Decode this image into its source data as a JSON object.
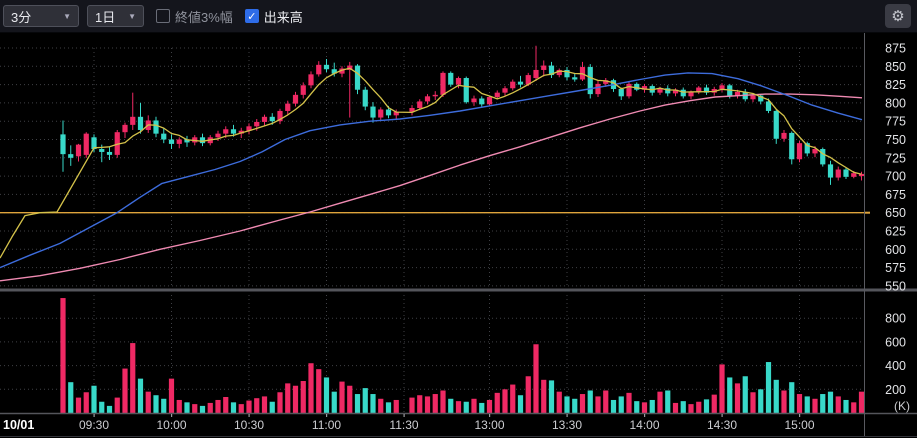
{
  "toolbar": {
    "interval_select": {
      "value": "3分"
    },
    "range_select": {
      "value": "1日"
    },
    "close_band_checkbox": {
      "label": "終値3%幅",
      "checked": false
    },
    "volume_checkbox": {
      "label": "出来高",
      "checked": true
    }
  },
  "icons": {
    "caret": "▼",
    "check": "✓",
    "gear": "⚙"
  },
  "colors": {
    "up": "#ef2964",
    "down": "#38d9c9",
    "ma_short": "#d4c24a",
    "ma_mid": "#3d6cdc",
    "ma_long": "#ef8ab2",
    "reference": "#dfa43c",
    "grid": "#3f4045",
    "axis_text": "#e2e3e6",
    "time_text": "#cdced2",
    "divider": "#54555b",
    "border": "#595a60"
  },
  "chart_data": {
    "type": "candlestick",
    "date_label": "10/01",
    "interval_minutes": 3,
    "sessions": {
      "morning_start": "09:18",
      "morning_count": 44,
      "afternoon_start": "12:30",
      "afternoon_count": 59
    },
    "time_ticks": [
      "09:30",
      "10:00",
      "10:30",
      "11:00",
      "11:30",
      "13:00",
      "13:30",
      "14:00",
      "14:30",
      "15:00"
    ],
    "price_axis": {
      "min": 550,
      "max": 875,
      "step": 25,
      "side": "right"
    },
    "volume_axis": {
      "ticks": [
        200,
        400,
        600,
        800
      ],
      "unit": "(K)"
    },
    "reference_line": {
      "price": 650
    },
    "candles": [
      [
        757,
        776,
        706,
        730,
        970
      ],
      [
        730,
        742,
        714,
        725,
        260
      ],
      [
        727,
        744,
        720,
        743,
        130
      ],
      [
        729,
        760,
        725,
        758,
        175
      ],
      [
        753,
        757,
        733,
        737,
        230
      ],
      [
        737,
        743,
        719,
        733,
        95
      ],
      [
        733,
        740,
        722,
        729,
        60
      ],
      [
        729,
        763,
        725,
        760,
        130
      ],
      [
        760,
        773,
        752,
        770,
        375
      ],
      [
        770,
        814,
        763,
        781,
        590
      ],
      [
        781,
        800,
        758,
        763,
        290
      ],
      [
        763,
        783,
        759,
        776,
        180
      ],
      [
        776,
        781,
        753,
        758,
        150
      ],
      [
        758,
        766,
        745,
        750,
        120
      ],
      [
        750,
        757,
        737,
        744,
        290
      ],
      [
        744,
        753,
        738,
        750,
        110
      ],
      [
        750,
        755,
        740,
        746,
        90
      ],
      [
        746,
        756,
        742,
        753,
        75
      ],
      [
        753,
        758,
        741,
        745,
        60
      ],
      [
        745,
        756,
        742,
        753,
        85
      ],
      [
        753,
        762,
        748,
        758,
        110
      ],
      [
        758,
        768,
        752,
        764,
        135
      ],
      [
        764,
        770,
        754,
        758,
        90
      ],
      [
        758,
        766,
        752,
        762,
        75
      ],
      [
        762,
        772,
        757,
        768,
        105
      ],
      [
        768,
        778,
        762,
        774,
        125
      ],
      [
        774,
        784,
        768,
        781,
        140
      ],
      [
        781,
        786,
        770,
        775,
        95
      ],
      [
        775,
        792,
        771,
        789,
        175
      ],
      [
        789,
        803,
        784,
        799,
        250
      ],
      [
        799,
        815,
        795,
        811,
        230
      ],
      [
        811,
        828,
        806,
        824,
        270
      ],
      [
        824,
        843,
        820,
        839,
        420
      ],
      [
        839,
        857,
        836,
        852,
        370
      ],
      [
        852,
        860,
        842,
        846,
        300
      ],
      [
        846,
        855,
        836,
        840,
        180
      ],
      [
        840,
        850,
        835,
        847,
        265
      ],
      [
        845,
        856,
        780,
        851,
        230
      ],
      [
        851,
        853,
        812,
        818,
        160
      ],
      [
        818,
        822,
        790,
        795,
        210
      ],
      [
        795,
        801,
        773,
        780,
        160
      ],
      [
        780,
        794,
        776,
        791,
        120
      ],
      [
        791,
        796,
        779,
        783,
        90
      ],
      [
        783,
        791,
        778,
        788,
        110
      ],
      [
        788,
        797,
        783,
        793,
        130
      ],
      [
        793,
        805,
        790,
        802,
        150
      ],
      [
        802,
        812,
        798,
        809,
        140
      ],
      [
        809,
        816,
        804,
        811,
        160
      ],
      [
        811,
        843,
        808,
        841,
        190
      ],
      [
        841,
        843,
        822,
        825,
        120
      ],
      [
        825,
        836,
        820,
        834,
        100
      ],
      [
        834,
        836,
        799,
        801,
        95
      ],
      [
        801,
        810,
        796,
        806,
        120
      ],
      [
        806,
        809,
        795,
        798,
        85
      ],
      [
        798,
        810,
        796,
        808,
        110
      ],
      [
        808,
        817,
        805,
        814,
        170
      ],
      [
        814,
        823,
        810,
        820,
        200
      ],
      [
        820,
        832,
        817,
        829,
        240
      ],
      [
        829,
        837,
        821,
        825,
        150
      ],
      [
        825,
        841,
        823,
        838,
        310
      ],
      [
        834,
        878,
        830,
        845,
        580
      ],
      [
        845,
        858,
        836,
        851,
        280
      ],
      [
        851,
        856,
        834,
        838,
        275
      ],
      [
        838,
        847,
        835,
        845,
        180
      ],
      [
        845,
        849,
        831,
        835,
        140
      ],
      [
        835,
        840,
        829,
        832,
        120
      ],
      [
        832,
        856,
        830,
        849,
        160
      ],
      [
        849,
        853,
        806,
        812,
        190
      ],
      [
        812,
        830,
        808,
        826,
        140
      ],
      [
        826,
        834,
        822,
        831,
        190
      ],
      [
        831,
        833,
        815,
        819,
        110
      ],
      [
        819,
        821,
        804,
        809,
        140
      ],
      [
        809,
        829,
        806,
        826,
        170
      ],
      [
        826,
        828,
        816,
        818,
        100
      ],
      [
        818,
        826,
        814,
        823,
        90
      ],
      [
        823,
        825,
        810,
        814,
        110
      ],
      [
        814,
        822,
        811,
        820,
        180
      ],
      [
        820,
        824,
        809,
        813,
        190
      ],
      [
        813,
        820,
        809,
        818,
        85
      ],
      [
        818,
        821,
        806,
        809,
        100
      ],
      [
        809,
        817,
        805,
        815,
        75
      ],
      [
        815,
        823,
        812,
        821,
        95
      ],
      [
        821,
        825,
        811,
        814,
        115
      ],
      [
        814,
        822,
        810,
        819,
        155
      ],
      [
        819,
        827,
        815,
        824,
        410
      ],
      [
        824,
        826,
        806,
        810,
        300
      ],
      [
        810,
        818,
        806,
        815,
        250
      ],
      [
        815,
        819,
        802,
        805,
        310
      ],
      [
        805,
        813,
        801,
        810,
        175
      ],
      [
        810,
        812,
        798,
        802,
        200
      ],
      [
        802,
        806,
        786,
        789,
        430
      ],
      [
        789,
        791,
        744,
        751,
        280
      ],
      [
        751,
        763,
        747,
        759,
        190
      ],
      [
        759,
        761,
        716,
        723,
        260
      ],
      [
        723,
        748,
        719,
        745,
        160
      ],
      [
        745,
        747,
        727,
        731,
        140
      ],
      [
        731,
        741,
        726,
        737,
        120
      ],
      [
        737,
        739,
        713,
        716,
        160
      ],
      [
        716,
        721,
        688,
        698,
        180
      ],
      [
        698,
        713,
        694,
        709,
        140
      ],
      [
        709,
        711,
        696,
        699,
        110
      ],
      [
        699,
        707,
        697,
        704,
        90
      ],
      [
        700,
        706,
        694,
        703,
        180
      ]
    ],
    "volume_color_overrides": {
      "0": "up",
      "14": "up"
    },
    "moving_averages": {
      "short": {
        "period": 5,
        "presession_points": [
          [
            0,
            588
          ],
          [
            12,
            617
          ],
          [
            25,
            646
          ],
          [
            40,
            650
          ],
          [
            57,
            651
          ]
        ]
      },
      "mid": {
        "points": [
          [
            0,
            575
          ],
          [
            30,
            592
          ],
          [
            60,
            608
          ],
          [
            90,
            630
          ],
          [
            117,
            650
          ],
          [
            140,
            671
          ],
          [
            162,
            690
          ],
          [
            190,
            700
          ],
          [
            215,
            709
          ],
          [
            240,
            720
          ],
          [
            262,
            733
          ],
          [
            285,
            750
          ],
          [
            310,
            762
          ],
          [
            340,
            770
          ],
          [
            370,
            775
          ],
          [
            400,
            778
          ],
          [
            430,
            783
          ],
          [
            460,
            789
          ],
          [
            490,
            796
          ],
          [
            520,
            803
          ],
          [
            550,
            810
          ],
          [
            580,
            817
          ],
          [
            610,
            824
          ],
          [
            640,
            832
          ],
          [
            665,
            838
          ],
          [
            688,
            841
          ],
          [
            712,
            840
          ],
          [
            738,
            833
          ],
          [
            762,
            823
          ],
          [
            788,
            810
          ],
          [
            812,
            797
          ],
          [
            838,
            786
          ],
          [
            862,
            777
          ]
        ]
      },
      "long": {
        "points": [
          [
            0,
            557
          ],
          [
            40,
            564
          ],
          [
            80,
            574
          ],
          [
            120,
            586
          ],
          [
            160,
            600
          ],
          [
            200,
            612
          ],
          [
            240,
            625
          ],
          [
            280,
            640
          ],
          [
            310,
            651
          ],
          [
            340,
            663
          ],
          [
            370,
            675
          ],
          [
            400,
            687
          ],
          [
            430,
            701
          ],
          [
            460,
            715
          ],
          [
            490,
            728
          ],
          [
            520,
            740
          ],
          [
            550,
            753
          ],
          [
            580,
            766
          ],
          [
            610,
            778
          ],
          [
            640,
            789
          ],
          [
            665,
            797
          ],
          [
            690,
            803
          ],
          [
            715,
            808
          ],
          [
            740,
            810
          ],
          [
            765,
            812
          ],
          [
            790,
            812
          ],
          [
            815,
            811
          ],
          [
            840,
            809
          ],
          [
            862,
            807
          ]
        ]
      }
    }
  }
}
